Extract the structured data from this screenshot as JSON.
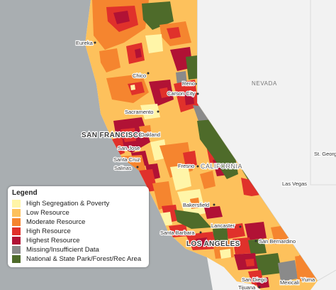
{
  "legend": {
    "title": "Legend",
    "items": [
      {
        "label": "High Segregation & Poverty",
        "color": "#fff5a8"
      },
      {
        "label": "Low Resource",
        "color": "#fdc15c"
      },
      {
        "label": "Moderate Resource",
        "color": "#f5852f"
      },
      {
        "label": "High Resource",
        "color": "#e0312b"
      },
      {
        "label": "Highest Resource",
        "color": "#b11235"
      },
      {
        "label": "Missing/Insufficient Data",
        "color": "#8a8a8a"
      },
      {
        "label": "National & State Park/Forest/Rec Area",
        "color": "#4e6b2a"
      }
    ]
  },
  "places": {
    "san_francisco": "SAN FRANCISCO",
    "los_angeles": "LOS ANGELES",
    "california": "CALIFORNIA",
    "nevada": "NEVADA",
    "eureka": "Eureka",
    "chico": "Chico",
    "reno": "Reno",
    "carson_city": "Carson City",
    "sacramento": "Sacramento",
    "oakland": "Oakland",
    "san_jose": "San Jose",
    "santa_cruz": "Santa Cruz",
    "salinas": "Salinas",
    "fresno": "Fresno",
    "las_vegas": "Las Vegas",
    "bakersfield": "Bakersfield",
    "lancaster": "Lancaster",
    "santa_barbara": "Santa Barbara",
    "san_bernardino": "San Bernardino",
    "san_diego": "San Diego",
    "mexicali": "Mexicali",
    "yuma": "Yuma",
    "tijuana": "Tijuana",
    "st_george": "St. Georg"
  }
}
